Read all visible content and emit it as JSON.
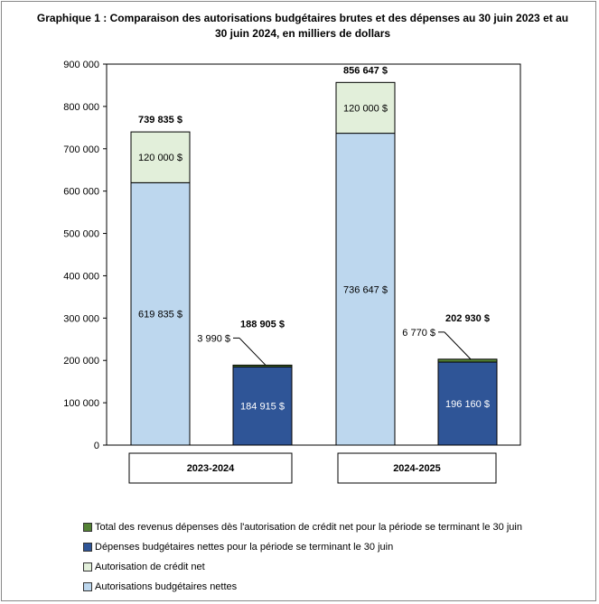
{
  "chart_data": {
    "type": "bar",
    "stacked": true,
    "title": "Graphique 1 : Comparaison des autorisations budgétaires brutes et des dépenses au 30 juin 2023 et au 30 juin 2024, en milliers de dollars",
    "ylim": [
      0,
      900000
    ],
    "yticks": [
      "0",
      "100 000",
      "200 000",
      "300 000",
      "400 000",
      "500 000",
      "600 000",
      "700 000",
      "800 000",
      "900 000"
    ],
    "groups": [
      "2023-2024",
      "2024-2025"
    ],
    "bars": [
      {
        "group": 0,
        "segments": [
          {
            "series": 3,
            "value": 619835,
            "label": "619 835 $"
          },
          {
            "series": 2,
            "value": 120000,
            "label": "120 000 $"
          }
        ],
        "total": "739 835 $"
      },
      {
        "group": 0,
        "segments": [
          {
            "series": 1,
            "value": 184915,
            "label": "184 915 $"
          },
          {
            "series": 0,
            "value": 3990,
            "label": "3 990 $",
            "callout": true
          }
        ],
        "total": "188 905 $"
      },
      {
        "group": 1,
        "segments": [
          {
            "series": 3,
            "value": 736647,
            "label": "736 647 $"
          },
          {
            "series": 2,
            "value": 120000,
            "label": "120 000 $"
          }
        ],
        "total": "856 647 $"
      },
      {
        "group": 1,
        "segments": [
          {
            "series": 1,
            "value": 196160,
            "label": "196 160 $"
          },
          {
            "series": 0,
            "value": 6770,
            "label": "6 770 $",
            "callout": true
          }
        ],
        "total": "202 930 $"
      }
    ],
    "series": [
      {
        "name": "Total des revenus dépenses dès l'autorisation de crédit net pour la période se terminant le 30 juin",
        "color": "#548235"
      },
      {
        "name": "Dépenses budgétaires nettes pour la période se terminant le 30 juin",
        "color": "#2F5597"
      },
      {
        "name": "Autorisation de crédit net",
        "color": "#E2EFDA"
      },
      {
        "name": "Autorisations budgétaires nettes",
        "color": "#BDD7EE"
      }
    ],
    "legend": "bottom"
  }
}
